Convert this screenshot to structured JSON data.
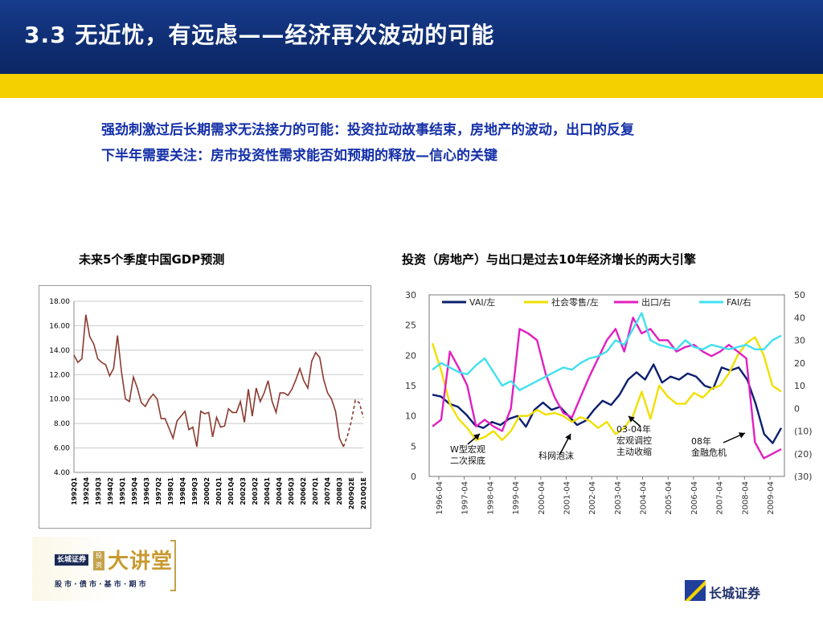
{
  "slide": {
    "title": "3.3   无近忧，有远虑——经济再次波动的可能",
    "bullets": [
      "强劲刺激过后长期需求无法接力的可能：投资拉动故事结束，房地产的波动，出口的反复",
      "下半年需要关注：房市投资性需求能否如预期的释放—信心的关键"
    ],
    "colors": {
      "header": "#10307a",
      "accent_bar": "#f5d000",
      "bullet_text": "#1530a8"
    }
  },
  "chart_data": [
    {
      "type": "line",
      "title": "未来5个季度中国GDP预测",
      "xlabel": "",
      "ylabel": "",
      "ylim": [
        4,
        18
      ],
      "yticks": [
        "4.00",
        "6.00",
        "8.00",
        "10.00",
        "12.00",
        "14.00",
        "16.00",
        "18.00"
      ],
      "xtick_labels": [
        "1992Q1",
        "1992Q4",
        "1993Q3",
        "1994Q2",
        "1995Q1",
        "1995Q4",
        "1996Q3",
        "1997Q2",
        "1998Q1",
        "1998Q4",
        "1999Q3",
        "2000Q2",
        "2001Q1",
        "2001Q4",
        "2002Q3",
        "2003Q2",
        "2004Q1",
        "2004Q4",
        "2005Q3",
        "2006Q2",
        "2007Q1",
        "2007Q4",
        "2008Q3",
        "2009Q2E",
        "2010Q1E"
      ],
      "grid": true,
      "series": [
        {
          "name": "",
          "color": "#8b3a2f",
          "values": [
            13.6,
            13.0,
            13.3,
            16.9,
            15.1,
            14.5,
            13.3,
            13.0,
            12.8,
            11.9,
            12.5,
            15.2,
            12.2,
            10.0,
            9.8,
            11.8,
            10.9,
            9.7,
            9.4,
            10.0,
            10.4,
            10.0,
            8.4,
            8.4,
            7.6,
            6.8,
            8.2,
            8.6,
            9.0,
            7.5,
            7.7,
            6.1,
            9.0,
            8.8,
            8.9,
            6.9,
            8.5,
            7.7,
            7.8,
            9.2,
            8.9,
            8.9,
            9.8,
            8.1,
            10.8,
            8.6,
            10.9,
            9.8,
            10.5,
            11.5,
            9.8,
            8.9,
            10.5,
            10.5,
            10.3,
            10.8,
            11.6,
            12.5,
            11.5,
            10.9,
            13.1,
            13.8,
            13.4,
            11.6,
            10.5,
            10.0,
            9.0,
            6.8,
            6.1
          ],
          "forecast_values": [
            6.1,
            7.0,
            8.2,
            9.9,
            9.7,
            8.5
          ]
        }
      ]
    },
    {
      "type": "line",
      "title": "投资（房地产）与出口是过去10年经济增长的两大引擎",
      "ylim_left": [
        0,
        30
      ],
      "yticks_left": [
        "0",
        "5",
        "10",
        "15",
        "20",
        "25",
        "30"
      ],
      "ylim_right": [
        -30,
        50
      ],
      "yticks_right": [
        "50",
        "40",
        "30",
        "20",
        "10",
        "0",
        "(10)",
        "(20)",
        "(30)"
      ],
      "xtick_labels": [
        "1996-04",
        "1997-04",
        "1998-04",
        "1999-04",
        "2000-04",
        "2001-04",
        "2002-04",
        "2003-04",
        "2004-04",
        "2005-04",
        "2006-04",
        "2007-04",
        "2008-04",
        "2009-04"
      ],
      "legend_placement": "top",
      "series": [
        {
          "name": "VAI/左",
          "axis": "left",
          "color": "#0b1f6e",
          "values": [
            13.5,
            13.2,
            12.0,
            11.5,
            10.2,
            8.5,
            8.0,
            9.0,
            8.5,
            9.5,
            10.0,
            8.2,
            11.0,
            12.2,
            11.0,
            11.5,
            10.0,
            8.5,
            9.2,
            11.0,
            12.5,
            11.8,
            13.5,
            16.0,
            17.2,
            16.0,
            18.5,
            15.5,
            16.5,
            16.0,
            17.0,
            16.5,
            15.0,
            14.5,
            18.0,
            17.5,
            18.0,
            16.0,
            12.0,
            7.0,
            5.5,
            8.0
          ]
        },
        {
          "name": "社会零售/左",
          "axis": "left",
          "color": "#f0e000",
          "values": [
            22.0,
            17.5,
            12.0,
            9.5,
            8.0,
            6.0,
            6.5,
            7.5,
            6.0,
            7.5,
            10.0,
            10.0,
            11.0,
            10.2,
            10.5,
            10.0,
            9.0,
            9.8,
            9.2,
            8.0,
            9.0,
            7.0,
            8.0,
            10.0,
            14.0,
            9.5,
            15.0,
            13.2,
            12.0,
            12.0,
            13.8,
            13.0,
            14.5,
            15.0,
            17.0,
            20.0,
            22.0,
            23.0,
            20.0,
            15.0,
            14.0
          ]
        },
        {
          "name": "出口/右",
          "axis": "right",
          "color": "#e020c0",
          "values": [
            -8.0,
            -5.0,
            25.0,
            18.0,
            10.0,
            -8.0,
            -5.0,
            -8.0,
            -10.0,
            0.0,
            35.0,
            33.0,
            30.0,
            15.0,
            5.0,
            -2.0,
            -4.0,
            5.0,
            14.0,
            22.0,
            30.0,
            35.0,
            25.0,
            40.0,
            33.0,
            35.0,
            30.0,
            30.0,
            25.0,
            27.0,
            28.0,
            25.0,
            23.0,
            25.0,
            28.0,
            25.0,
            22.0,
            -15.0,
            -22.0,
            -20.0,
            -18.0
          ]
        },
        {
          "name": "FAI/右",
          "axis": "right",
          "color": "#40e0f0",
          "values": [
            17.0,
            20.0,
            18.0,
            16.0,
            15.0,
            19.0,
            22.0,
            16.0,
            10.0,
            12.0,
            8.0,
            10.0,
            12.0,
            14.0,
            16.0,
            18.0,
            17.0,
            20.0,
            22.0,
            23.0,
            25.0,
            30.0,
            28.0,
            35.0,
            42.0,
            30.0,
            28.0,
            27.0,
            26.0,
            30.0,
            27.0,
            26.0,
            28.0,
            27.0,
            26.0,
            27.0,
            28.0,
            26.0,
            26.0,
            30.0,
            32.0
          ]
        }
      ],
      "annotations": [
        {
          "label": "W型宏观\n二次探底"
        },
        {
          "label": "科网泡沫"
        },
        {
          "label": "03-04年\n宏观调控\n主动收缩"
        },
        {
          "label": "08年\n金融危机"
        }
      ]
    }
  ],
  "logos": {
    "left": {
      "badge": "长城证券",
      "stamp": "投资",
      "main": "大讲堂",
      "sub": "股 市 · 债 市 · 基 市 · 期 市"
    },
    "right": {
      "name": "长城证券"
    }
  }
}
